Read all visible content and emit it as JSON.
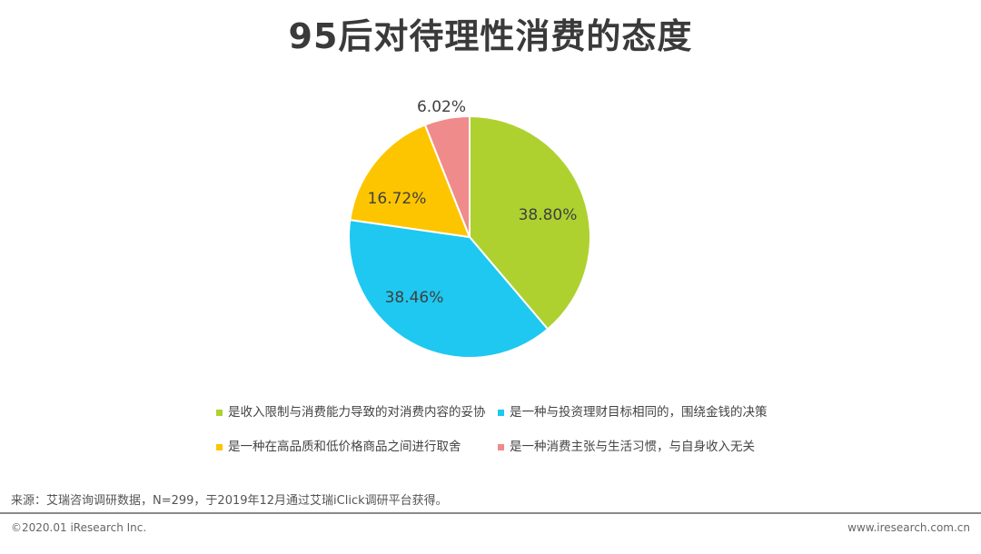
{
  "title": "95后对待理性消费的态度",
  "chart_data": {
    "type": "pie",
    "categories": [
      "是收入限制与消费能力导致的对消费内容的妥协",
      "是一种与投资理财目标相同的，围绕金钱的决策",
      "是一种在高品质和低价格商品之间进行取舍",
      "是一种消费主张与生活习惯，与自身收入无关"
    ],
    "values": [
      38.8,
      38.46,
      16.72,
      6.02
    ],
    "labels": [
      "38.80%",
      "38.46%",
      "16.72%",
      "6.02%"
    ],
    "colors": [
      "#aed130",
      "#1fc8f0",
      "#fdc500",
      "#f08b8b"
    ],
    "legend_position": "bottom"
  },
  "source": "来源：艾瑞咨询调研数据，N=299，于2019年12月通过艾瑞iClick调研平台获得。",
  "footer": {
    "copyright": "©2020.01 iResearch Inc.",
    "website": "www.iresearch.com.cn"
  }
}
